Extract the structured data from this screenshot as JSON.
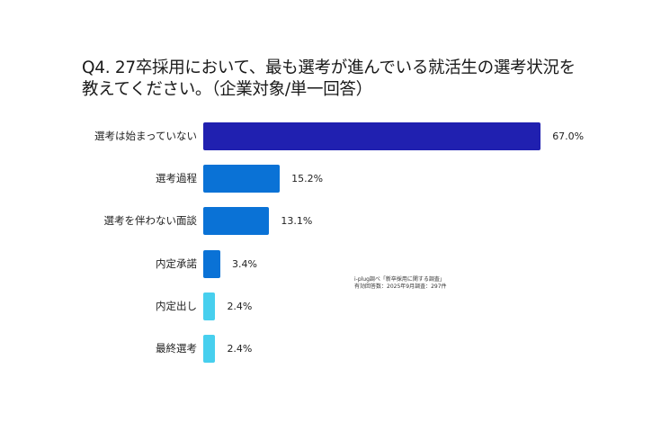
{
  "title": {
    "line1": "Q4. 27卒採用において、最も選考が進んでいる就活生の選考状況を",
    "line2": "教えてください。（企業対象/単一回答）"
  },
  "note": {
    "line1": "i-plug調べ「新卒採用に関する調査」",
    "line2": "有効回答数：2025年9月調査：297件"
  },
  "colors": {
    "dark_blue": "#2020b0",
    "mid_blue": "#0a72d6",
    "light_blue": "#47cfee"
  },
  "chart_data": {
    "type": "bar",
    "orientation": "horizontal",
    "title": "Q4. 27卒採用において、最も選考が進んでいる就活生の選考状況を教えてください。（企業対象/単一回答）",
    "xlabel": "",
    "ylabel": "",
    "unit": "%",
    "grid": false,
    "legend": null,
    "categories": [
      "選考は始まっていない",
      "選考過程",
      "選考を伴わない面談",
      "内定承諾",
      "内定出し",
      "最終選考"
    ],
    "values": [
      67.0,
      15.2,
      13.1,
      3.4,
      2.4,
      2.4
    ],
    "value_labels": [
      "67.0%",
      "15.2%",
      "13.1%",
      "3.4%",
      "2.4%",
      "2.4%"
    ],
    "bar_colors": [
      "#2020b0",
      "#0a72d6",
      "#0a72d6",
      "#0a72d6",
      "#47cfee",
      "#47cfee"
    ],
    "annotations": [
      "i-plug調べ「新卒採用に関する調査」",
      "有効回答数：2025年9月調査：297件"
    ]
  }
}
